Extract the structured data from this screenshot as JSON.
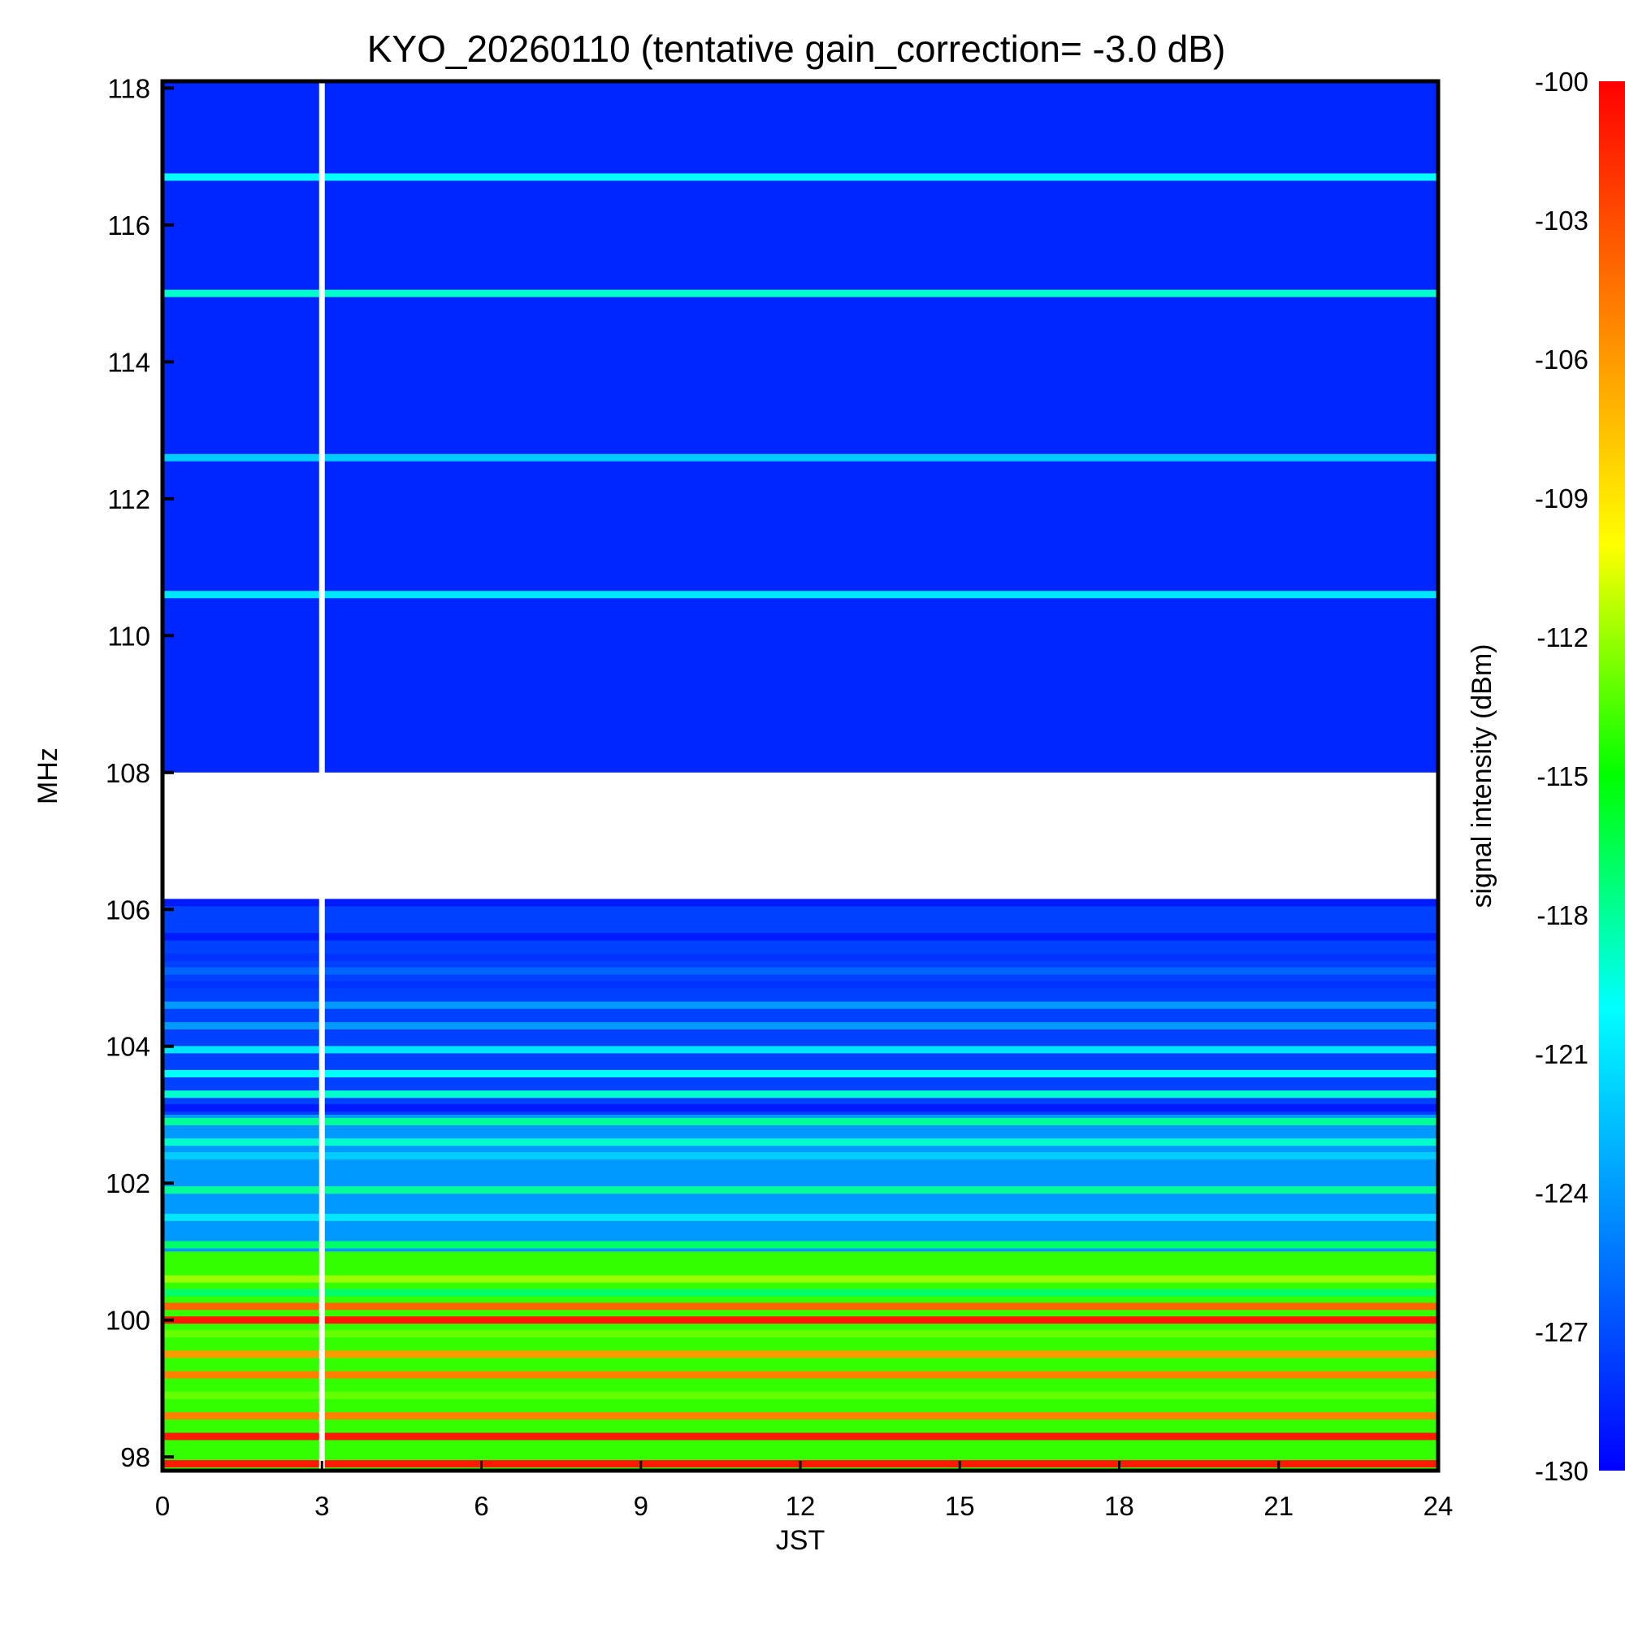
{
  "chart_data": {
    "type": "heatmap",
    "title": "KYO_20260110 (tentative gain_correction= -3.0 dB)",
    "xlabel": "JST",
    "ylabel": "MHz",
    "xlim": [
      0,
      24
    ],
    "ylim": [
      97.8,
      118.1
    ],
    "xticks": [
      "0",
      "3",
      "6",
      "9",
      "12",
      "15",
      "18",
      "21",
      "24"
    ],
    "yticks": [
      "98",
      "100",
      "102",
      "104",
      "106",
      "108",
      "110",
      "112",
      "114",
      "116",
      "118"
    ],
    "colorbar": {
      "label": "signal intensity (dBm)",
      "range": [
        -130,
        -100
      ],
      "ticks": [
        "-100",
        "-103",
        "-106",
        "-109",
        "-112",
        "-115",
        "-118",
        "-121",
        "-124",
        "-127",
        "-130"
      ],
      "colormap": [
        "#0000ff",
        "#0080ff",
        "#00ffff",
        "#00ff00",
        "#ffff00",
        "#ff8000",
        "#ff0000"
      ]
    },
    "data_gap": {
      "x": 3.0,
      "description": "blank column"
    },
    "bands": [
      {
        "range": [
          108.0,
          118.1
        ],
        "level_dbm": -128.5,
        "note": "blue noise floor"
      },
      {
        "range": [
          106.1,
          108.0
        ],
        "level_dbm": null,
        "note": "mostly blank"
      },
      {
        "range": [
          103.0,
          106.1
        ],
        "level_dbm": -127.5,
        "note": "sparse blue lines"
      },
      {
        "range": [
          101.0,
          103.0
        ],
        "level_dbm": -124.0,
        "note": "blue-cyan-green"
      },
      {
        "range": [
          97.8,
          101.0
        ],
        "level_dbm": -114.0,
        "note": "green-yellow-red"
      }
    ],
    "lines": [
      {
        "freq": 116.7,
        "level_dbm": -120
      },
      {
        "freq": 115.0,
        "level_dbm": -119
      },
      {
        "freq": 112.6,
        "level_dbm": -122
      },
      {
        "freq": 110.6,
        "level_dbm": -121
      },
      {
        "freq": 106.1,
        "level_dbm": -129
      },
      {
        "freq": 105.6,
        "level_dbm": -129
      },
      {
        "freq": 105.3,
        "level_dbm": -128
      },
      {
        "freq": 105.1,
        "level_dbm": -126
      },
      {
        "freq": 104.9,
        "level_dbm": -128
      },
      {
        "freq": 104.6,
        "level_dbm": -124
      },
      {
        "freq": 104.3,
        "level_dbm": -124
      },
      {
        "freq": 103.95,
        "level_dbm": -121
      },
      {
        "freq": 103.6,
        "level_dbm": -120
      },
      {
        "freq": 103.3,
        "level_dbm": -119
      },
      {
        "freq": 103.1,
        "level_dbm": -129
      },
      {
        "freq": 102.9,
        "level_dbm": -118
      },
      {
        "freq": 102.6,
        "level_dbm": -119
      },
      {
        "freq": 102.4,
        "level_dbm": -122
      },
      {
        "freq": 101.9,
        "level_dbm": -118
      },
      {
        "freq": 101.5,
        "level_dbm": -121
      },
      {
        "freq": 101.1,
        "level_dbm": -117
      },
      {
        "freq": 100.9,
        "level_dbm": -114
      },
      {
        "freq": 100.6,
        "level_dbm": -112
      },
      {
        "freq": 100.4,
        "level_dbm": -117
      },
      {
        "freq": 100.2,
        "level_dbm": -104
      },
      {
        "freq": 100.0,
        "level_dbm": -101
      },
      {
        "freq": 99.8,
        "level_dbm": -113
      },
      {
        "freq": 99.5,
        "level_dbm": -106
      },
      {
        "freq": 99.2,
        "level_dbm": -105
      },
      {
        "freq": 98.9,
        "level_dbm": -113
      },
      {
        "freq": 98.6,
        "level_dbm": -105
      },
      {
        "freq": 98.3,
        "level_dbm": -101
      },
      {
        "freq": 97.9,
        "level_dbm": -101
      }
    ]
  }
}
